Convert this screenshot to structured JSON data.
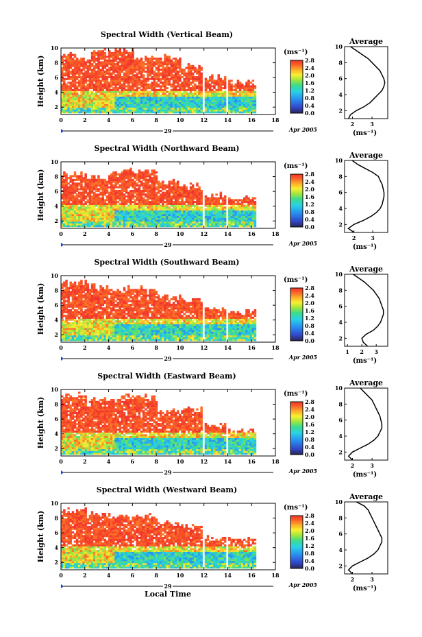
{
  "chart_data": [
    {
      "type": "heatmap",
      "title": "Spectral Width (Vertical Beam)",
      "ylabel": "Height (km)",
      "y_ticks": [
        "2",
        "4",
        "6",
        "8",
        "10"
      ],
      "x_ticks": [
        "0",
        "2",
        "4",
        "6",
        "8",
        "10",
        "12",
        "14",
        "16",
        "18"
      ],
      "xlim": [
        0,
        18
      ],
      "ylim": [
        1,
        10
      ],
      "day_label": "29",
      "date_label": "Apr 2005",
      "colorbar": {
        "unit": "(ms⁻¹)",
        "ticks": [
          "2.8",
          "2.4",
          "2.0",
          "1.6",
          "1.2",
          "0.8",
          "0.4",
          "0.0"
        ],
        "range": [
          0,
          2.8
        ]
      },
      "average_profile": {
        "title": "Average",
        "x_ticks": [
          "2",
          "3"
        ],
        "xlabel": "(ms⁻¹)",
        "y_ticks": [
          "2",
          "4",
          "6",
          "8",
          "10"
        ],
        "xlim": [
          1.6,
          3.8
        ],
        "heights": [
          1.0,
          1.5,
          2.0,
          2.5,
          3.0,
          3.5,
          4.0,
          4.5,
          5.0,
          5.5,
          6.0,
          6.5,
          7.0,
          7.5,
          8.0,
          8.5,
          9.0,
          9.5,
          10.0
        ],
        "values": [
          1.8,
          1.9,
          2.2,
          2.6,
          2.9,
          3.1,
          3.3,
          3.5,
          3.6,
          3.65,
          3.6,
          3.5,
          3.4,
          3.2,
          3.0,
          2.8,
          2.5,
          2.2,
          1.9
        ]
      }
    },
    {
      "type": "heatmap",
      "title": "Spectral Width (Northward Beam)",
      "ylabel": "Height (km)",
      "y_ticks": [
        "2",
        "4",
        "6",
        "8",
        "10"
      ],
      "x_ticks": [
        "0",
        "2",
        "4",
        "6",
        "8",
        "10",
        "12",
        "14",
        "16",
        "18"
      ],
      "xlim": [
        0,
        18
      ],
      "ylim": [
        1,
        10
      ],
      "day_label": "29",
      "date_label": "Apr 2005",
      "colorbar": {
        "unit": "(ms⁻¹)",
        "ticks": [
          "2.8",
          "2.4",
          "2.0",
          "1.6",
          "1.2",
          "0.8",
          "0.4",
          "0.0"
        ],
        "range": [
          0,
          2.8
        ]
      },
      "average_profile": {
        "title": "Average",
        "x_ticks": [
          "2",
          "3"
        ],
        "xlabel": "(ms⁻¹)",
        "y_ticks": [
          "2",
          "4",
          "6",
          "8",
          "10"
        ],
        "xlim": [
          1.5,
          3.8
        ],
        "heights": [
          1.0,
          1.5,
          2.0,
          2.5,
          3.0,
          3.5,
          4.0,
          4.5,
          5.0,
          5.5,
          6.0,
          6.5,
          7.0,
          7.5,
          8.0,
          8.5,
          9.0,
          9.5,
          10.0
        ],
        "values": [
          2.0,
          1.7,
          2.0,
          2.5,
          2.9,
          3.2,
          3.4,
          3.5,
          3.55,
          3.6,
          3.6,
          3.55,
          3.5,
          3.4,
          3.3,
          3.0,
          2.6,
          2.2,
          1.9
        ]
      }
    },
    {
      "type": "heatmap",
      "title": "Spectral Width (Southward Beam)",
      "ylabel": "Height (km)",
      "y_ticks": [
        "2",
        "4",
        "6",
        "8",
        "10"
      ],
      "x_ticks": [
        "0",
        "2",
        "4",
        "6",
        "8",
        "10",
        "12",
        "14",
        "16",
        "18"
      ],
      "xlim": [
        0,
        18
      ],
      "ylim": [
        1,
        10
      ],
      "day_label": "29",
      "date_label": "Apr 2005",
      "colorbar": {
        "unit": "(ms⁻¹)",
        "ticks": [
          "2.8",
          "2.4",
          "2.0",
          "1.6",
          "1.2",
          "0.8",
          "0.4",
          "0.0"
        ],
        "range": [
          0,
          2.8
        ]
      },
      "average_profile": {
        "title": "Average",
        "x_ticks": [
          "1",
          "2",
          "3"
        ],
        "xlabel": "(ms⁻¹)",
        "y_ticks": [
          "2",
          "4",
          "6",
          "8",
          "10"
        ],
        "xlim": [
          0.8,
          3.8
        ],
        "heights": [
          1.0,
          1.5,
          2.0,
          2.5,
          3.0,
          3.5,
          4.0,
          4.5,
          5.0,
          5.5,
          6.0,
          6.5,
          7.0,
          7.5,
          8.0,
          8.5,
          9.0,
          9.5,
          10.0
        ],
        "values": [
          2.4,
          2.1,
          2.0,
          2.3,
          2.8,
          3.1,
          3.3,
          3.4,
          3.5,
          3.5,
          3.4,
          3.3,
          3.2,
          3.0,
          2.8,
          2.5,
          2.2,
          1.8,
          1.4
        ]
      }
    },
    {
      "type": "heatmap",
      "title": "Spectral Width (Eastward Beam)",
      "ylabel": "Height (km)",
      "y_ticks": [
        "2",
        "4",
        "6",
        "8",
        "10"
      ],
      "x_ticks": [
        "0",
        "2",
        "4",
        "6",
        "8",
        "10",
        "12",
        "14",
        "16",
        "18"
      ],
      "xlim": [
        0,
        18
      ],
      "ylim": [
        1,
        10
      ],
      "day_label": "29",
      "date_label": "Apr 2005",
      "colorbar": {
        "unit": "(ms⁻¹)",
        "ticks": [
          "2.8",
          "2.4",
          "2.0",
          "1.6",
          "1.2",
          "0.8",
          "0.4",
          "0.0"
        ],
        "range": [
          0,
          2.8
        ]
      },
      "average_profile": {
        "title": "Average",
        "x_ticks": [
          "2",
          "3"
        ],
        "xlabel": "(ms⁻¹)",
        "y_ticks": [
          "2",
          "4",
          "6",
          "8",
          "10"
        ],
        "xlim": [
          1.6,
          3.8
        ],
        "heights": [
          1.0,
          1.5,
          2.0,
          2.5,
          3.0,
          3.5,
          4.0,
          4.5,
          5.0,
          5.5,
          6.0,
          6.5,
          7.0,
          7.5,
          8.0,
          8.5,
          9.0,
          9.5,
          10.0
        ],
        "values": [
          2.0,
          1.8,
          2.0,
          2.4,
          2.8,
          3.1,
          3.3,
          3.4,
          3.5,
          3.5,
          3.45,
          3.4,
          3.3,
          3.2,
          3.1,
          3.0,
          2.8,
          2.6,
          2.4
        ]
      }
    },
    {
      "type": "heatmap",
      "title": "Spectral Width (Westward Beam)",
      "ylabel": "Height (km)",
      "y_ticks": [
        "2",
        "4",
        "6",
        "8",
        "10"
      ],
      "x_ticks": [
        "0",
        "2",
        "4",
        "6",
        "8",
        "10",
        "12",
        "14",
        "16",
        "18"
      ],
      "xlim": [
        0,
        18
      ],
      "ylim": [
        1,
        10
      ],
      "day_label": "29",
      "date_label": "Apr 2005",
      "xlabel": "Local Time",
      "colorbar": {
        "unit": "(ms⁻¹)",
        "ticks": [
          "2.8",
          "2.4",
          "2.0",
          "1.6",
          "1.2",
          "0.8",
          "0.4",
          "0.0"
        ],
        "range": [
          0,
          2.8
        ]
      },
      "average_profile": {
        "title": "Average",
        "x_ticks": [
          "2",
          "3"
        ],
        "xlabel": "(ms⁻¹)",
        "y_ticks": [
          "2",
          "4",
          "6",
          "8",
          "10"
        ],
        "xlim": [
          1.6,
          3.8
        ],
        "heights": [
          1.0,
          1.5,
          2.0,
          2.5,
          3.0,
          3.5,
          4.0,
          4.5,
          5.0,
          5.5,
          6.0,
          6.5,
          7.0,
          7.5,
          8.0,
          8.5,
          9.0,
          9.5,
          10.0
        ],
        "values": [
          2.0,
          1.8,
          2.0,
          2.4,
          2.8,
          3.1,
          3.3,
          3.4,
          3.5,
          3.5,
          3.4,
          3.3,
          3.2,
          3.1,
          3.0,
          2.9,
          2.8,
          2.6,
          2.2
        ]
      }
    }
  ]
}
